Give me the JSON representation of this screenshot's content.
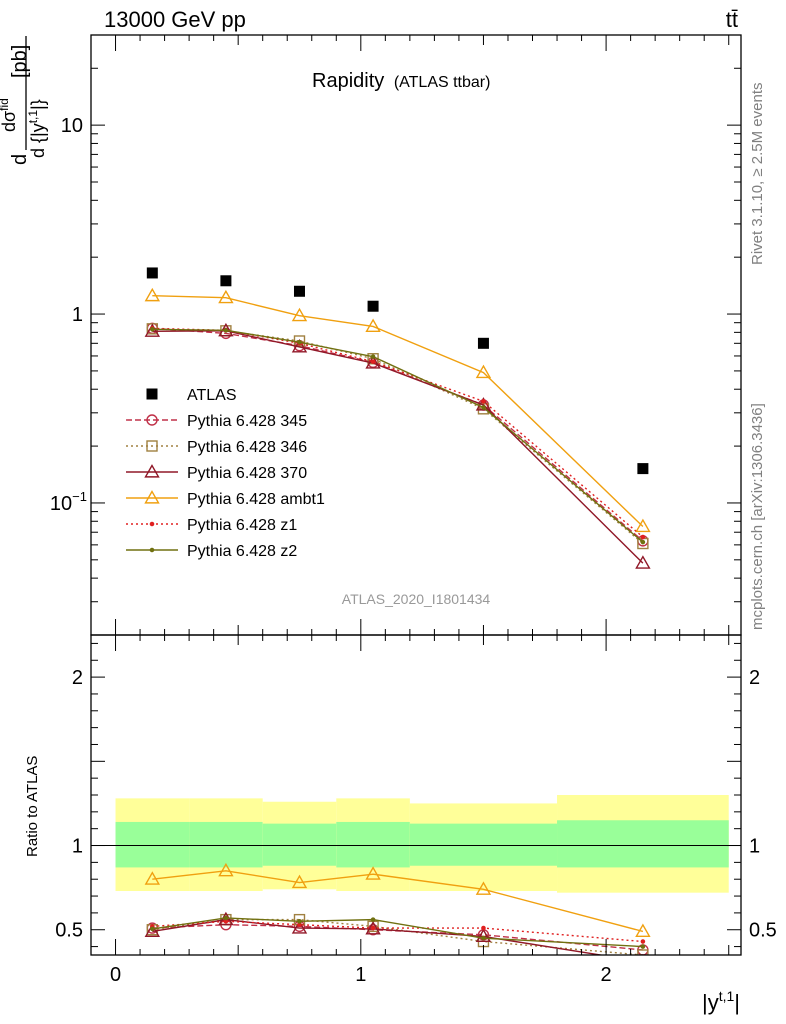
{
  "header": {
    "left": "13000 GeV pp",
    "right": "tt̄"
  },
  "plot_title": {
    "main": "Rapidity",
    "sub": "(ATLAS ttbar)"
  },
  "side_labels": {
    "top": "Rivet 3.1.10, ≥ 2.5M events",
    "bottom": "mcplots.cern.ch [arXiv:1306.3436]"
  },
  "analysis_id": "ATLAS_2020_I1801434",
  "colors": {
    "data": "#000000",
    "p345": "#c03048",
    "p346": "#a08040",
    "p370": "#901828",
    "ambt1": "#f0a010",
    "z1": "#e02020",
    "z2": "#707010",
    "band_outer": "#ffff99",
    "band_inner": "#99ff99"
  },
  "chart_data": [
    {
      "type": "scatter",
      "panel": "main",
      "ylabel": "dσ^fid / d {|y^t,1|} [pb]",
      "yscale": "log",
      "ylim": [
        0.02,
        30
      ],
      "xlim": [
        -0.1,
        2.55
      ],
      "yticks": [
        {
          "value": 10,
          "label": "10"
        },
        {
          "value": 1,
          "label": "1"
        },
        {
          "value": 0.1,
          "label": "10⁻¹"
        }
      ],
      "x": [
        0.15,
        0.45,
        0.75,
        1.05,
        1.5,
        2.15
      ],
      "bin_edges": [
        0,
        0.3,
        0.6,
        0.9,
        1.2,
        1.8,
        2.5
      ],
      "series": [
        {
          "name": "ATLAS",
          "key": "data",
          "values": [
            1.65,
            1.5,
            1.32,
            1.1,
            0.7,
            0.152
          ]
        },
        {
          "name": "Pythia 6.428 345",
          "key": "p345",
          "values": [
            0.84,
            0.79,
            0.68,
            0.555,
            0.33,
            0.063
          ]
        },
        {
          "name": "Pythia 6.428 346",
          "key": "p346",
          "values": [
            0.835,
            0.815,
            0.72,
            0.58,
            0.315,
            0.061
          ]
        },
        {
          "name": "Pythia 6.428 370",
          "key": "p370",
          "values": [
            0.81,
            0.815,
            0.67,
            0.55,
            0.33,
            0.048
          ]
        },
        {
          "name": "Pythia 6.428 ambt1",
          "key": "ambt1",
          "values": [
            1.25,
            1.22,
            0.98,
            0.86,
            0.49,
            0.075
          ]
        },
        {
          "name": "Pythia 6.428 z1",
          "key": "z1",
          "values": [
            0.84,
            0.82,
            0.7,
            0.56,
            0.345,
            0.066
          ]
        },
        {
          "name": "Pythia 6.428 z2",
          "key": "z2",
          "values": [
            0.83,
            0.82,
            0.71,
            0.595,
            0.32,
            0.062
          ]
        }
      ]
    },
    {
      "type": "line",
      "panel": "ratio",
      "ylabel": "Ratio to ATLAS",
      "xlabel": "|y^t,1|",
      "ylim": [
        0.35,
        2.25
      ],
      "xlim": [
        -0.1,
        2.55
      ],
      "yticks": [
        {
          "value": 2,
          "label": "2"
        },
        {
          "value": 1,
          "label": "1"
        },
        {
          "value": 0.5,
          "label": "0.5"
        }
      ],
      "xticks": [
        {
          "value": 0,
          "label": "0"
        },
        {
          "value": 1,
          "label": "1"
        },
        {
          "value": 2,
          "label": "2"
        }
      ],
      "x": [
        0.15,
        0.45,
        0.75,
        1.05,
        1.5,
        2.15
      ],
      "bin_edges": [
        0,
        0.3,
        0.6,
        0.9,
        1.2,
        1.8,
        2.5
      ],
      "band_outer": [
        [
          0.73,
          1.28
        ],
        [
          0.73,
          1.28
        ],
        [
          0.74,
          1.26
        ],
        [
          0.73,
          1.28
        ],
        [
          0.73,
          1.25
        ],
        [
          0.72,
          1.3
        ]
      ],
      "band_inner": [
        [
          0.87,
          1.14
        ],
        [
          0.87,
          1.14
        ],
        [
          0.88,
          1.13
        ],
        [
          0.87,
          1.14
        ],
        [
          0.88,
          1.13
        ],
        [
          0.87,
          1.15
        ]
      ],
      "series": [
        {
          "name": "Pythia 6.428 345",
          "key": "p345",
          "values": [
            0.51,
            0.53,
            0.52,
            0.5,
            0.47,
            0.38
          ]
        },
        {
          "name": "Pythia 6.428 346",
          "key": "p346",
          "values": [
            0.5,
            0.56,
            0.56,
            0.52,
            0.43,
            0.35
          ]
        },
        {
          "name": "Pythia 6.428 370",
          "key": "p370",
          "values": [
            0.49,
            0.56,
            0.51,
            0.505,
            0.46,
            0.31
          ]
        },
        {
          "name": "Pythia 6.428 ambt1",
          "key": "ambt1",
          "values": [
            0.8,
            0.85,
            0.78,
            0.83,
            0.74,
            0.49
          ]
        },
        {
          "name": "Pythia 6.428 z1",
          "key": "z1",
          "values": [
            0.52,
            0.55,
            0.53,
            0.51,
            0.51,
            0.43
          ]
        },
        {
          "name": "Pythia 6.428 z2",
          "key": "z2",
          "values": [
            0.505,
            0.57,
            0.55,
            0.56,
            0.45,
            0.4
          ]
        }
      ]
    }
  ]
}
